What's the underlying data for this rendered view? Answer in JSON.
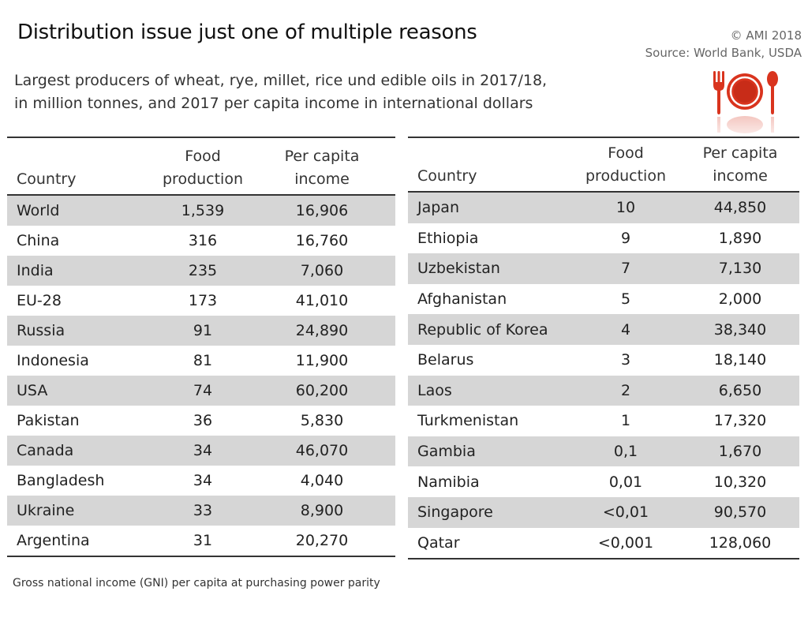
{
  "title": "Distribution issue just one of multiple reasons",
  "credits": {
    "copyright": "© AMI 2018",
    "source": "Source: World Bank, USDA"
  },
  "subtitle": {
    "line1": "Largest producers of wheat, rye, millet, rice und edible oils in 2017/18,",
    "line2": "in million tonnes, and 2017 per capita income in international dollars"
  },
  "colors": {
    "shade": "#d6d6d6",
    "accent_red": "#d9341e",
    "rule": "#333333"
  },
  "icon": "plate-fork-spoon-icon",
  "chart_data": {
    "type": "table",
    "columns": [
      "Country",
      "Food production",
      "Per capita income"
    ],
    "column_lines": {
      "country": "Country",
      "food1": "Food",
      "food2": "production",
      "income1": "Per capita",
      "income2": "income"
    },
    "left": [
      {
        "country": "World",
        "food": "1,539",
        "income": "16,906"
      },
      {
        "country": "China",
        "food": "316",
        "income": "16,760"
      },
      {
        "country": "India",
        "food": "235",
        "income": "7,060"
      },
      {
        "country": "EU-28",
        "food": "173",
        "income": "41,010"
      },
      {
        "country": "Russia",
        "food": "91",
        "income": "24,890"
      },
      {
        "country": "Indonesia",
        "food": "81",
        "income": "11,900"
      },
      {
        "country": "USA",
        "food": "74",
        "income": "60,200"
      },
      {
        "country": "Pakistan",
        "food": "36",
        "income": "5,830"
      },
      {
        "country": "Canada",
        "food": "34",
        "income": "46,070"
      },
      {
        "country": "Bangladesh",
        "food": "34",
        "income": "4,040"
      },
      {
        "country": "Ukraine",
        "food": "33",
        "income": "8,900"
      },
      {
        "country": "Argentina",
        "food": "31",
        "income": "20,270"
      }
    ],
    "right": [
      {
        "country": "Japan",
        "food": "10",
        "income": "44,850"
      },
      {
        "country": "Ethiopia",
        "food": "9",
        "income": "1,890"
      },
      {
        "country": "Uzbekistan",
        "food": "7",
        "income": "7,130"
      },
      {
        "country": "Afghanistan",
        "food": "5",
        "income": "2,000"
      },
      {
        "country": "Republic of Korea",
        "food": "4",
        "income": "38,340"
      },
      {
        "country": "Belarus",
        "food": "3",
        "income": "18,140"
      },
      {
        "country": "Laos",
        "food": "2",
        "income": "6,650"
      },
      {
        "country": "Turkmenistan",
        "food": "1",
        "income": "17,320"
      },
      {
        "country": "Gambia",
        "food": "0,1",
        "income": "1,670"
      },
      {
        "country": "Namibia",
        "food": "0,01",
        "income": "10,320"
      },
      {
        "country": "Singapore",
        "food": "<0,01",
        "income": "90,570"
      },
      {
        "country": "Qatar",
        "food": "<0,001",
        "income": "128,060"
      }
    ]
  },
  "footnote": "Gross national income  (GNI) per capita at purchasing power parity"
}
